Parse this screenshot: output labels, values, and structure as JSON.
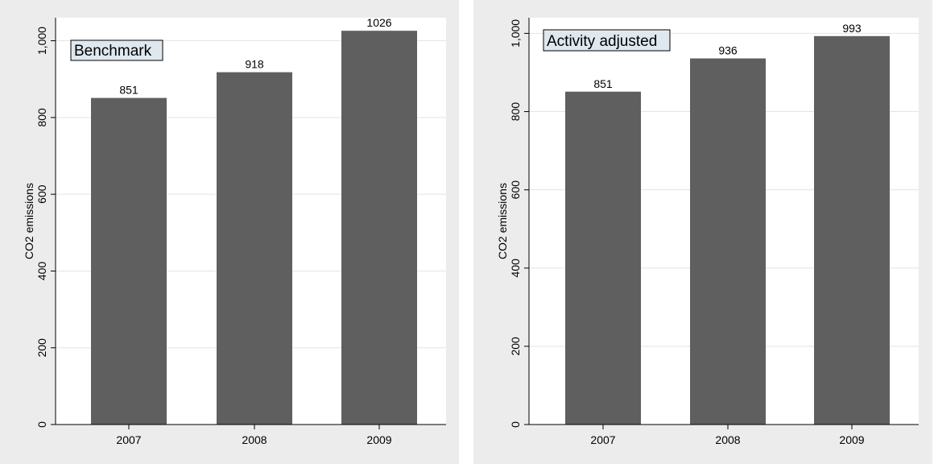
{
  "chart_data": [
    {
      "type": "bar",
      "title": "Benchmark",
      "categories": [
        "2007",
        "2008",
        "2009"
      ],
      "values": [
        851,
        918,
        1026
      ],
      "value_labels": [
        "851",
        "918",
        "1026"
      ],
      "xlabel": "",
      "ylabel": "CO2 emissions",
      "ylim": [
        0,
        1060
      ],
      "yticks": [
        0,
        200,
        400,
        600,
        800,
        1000
      ],
      "ytick_labels": [
        "0",
        "200",
        "400",
        "600",
        "800",
        "1,000"
      ],
      "grid": true,
      "bar_color": "#5f5f5f",
      "plot_background": "#ffffff",
      "outer_background": "#ececec",
      "title_box_color": "#dfe8ef"
    },
    {
      "type": "bar",
      "title": "Activity adjusted",
      "categories": [
        "2007",
        "2008",
        "2009"
      ],
      "values": [
        851,
        936,
        993
      ],
      "value_labels": [
        "851",
        "936",
        "993"
      ],
      "xlabel": "",
      "ylabel": "CO2 emissions",
      "ylim": [
        0,
        1040
      ],
      "yticks": [
        0,
        200,
        400,
        600,
        800,
        1000
      ],
      "ytick_labels": [
        "0",
        "200",
        "400",
        "600",
        "800",
        "1,000"
      ],
      "grid": true,
      "bar_color": "#5f5f5f",
      "plot_background": "#ffffff",
      "outer_background": "#ececec",
      "title_box_color": "#dfe8ef"
    }
  ]
}
